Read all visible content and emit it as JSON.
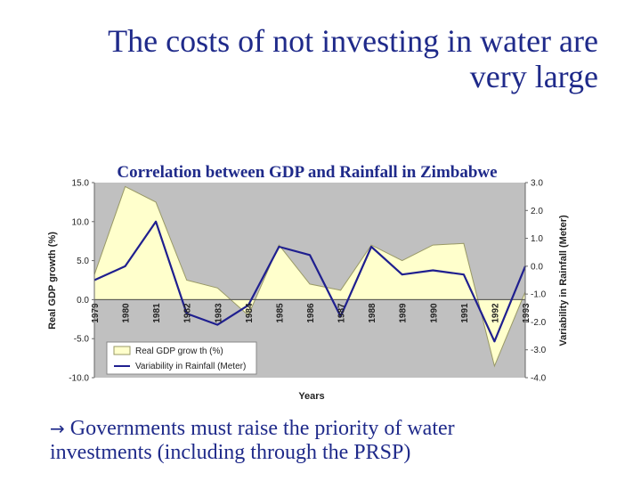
{
  "slide": {
    "title_line1": "The costs of not investing in water are",
    "title_line2": "very large",
    "bullet_symbol": "→",
    "bullet_line1": "Governments must raise the priority of water",
    "bullet_line2": "investments (including through the PRSP)"
  },
  "colors": {
    "title": "#1f2a8a",
    "plot_bg": "#c0c0c0",
    "gdp_fill": "#ffffcc",
    "gdp_line": "#999966",
    "rain_line": "#1f1f8f"
  },
  "chart_data": {
    "type": "area",
    "title": "Correlation between GDP and Rainfall in Zimbabwe",
    "xlabel": "Years",
    "ylabel_left": "Real GDP growth (%)",
    "ylabel_right": "Variability in Rainfall (Meter)",
    "categories": [
      "1979",
      "1980",
      "1981",
      "1982",
      "1983",
      "1984",
      "1985",
      "1986",
      "1987",
      "1988",
      "1989",
      "1990",
      "1991",
      "1992",
      "1993"
    ],
    "ylim_left": [
      -10,
      15
    ],
    "ylim_right": [
      -4,
      3
    ],
    "yticks_left": [
      "15.0",
      "10.0",
      "5.0",
      "0.0",
      "-5.0",
      "-10.0"
    ],
    "yticks_right": [
      "3.0",
      "2.0",
      "1.0",
      "0.0",
      "-1.0",
      "-2.0",
      "-3.0",
      "-4.0"
    ],
    "grid": false,
    "legend_position": "bottom-left",
    "series": [
      {
        "name": "Real GDP grow th (%)",
        "axis": "left",
        "type": "area",
        "values": [
          3.2,
          14.5,
          12.5,
          2.5,
          1.5,
          -2.0,
          7.0,
          2.0,
          1.2,
          7.0,
          5.0,
          7.0,
          7.2,
          -8.5,
          1.0
        ]
      },
      {
        "name": "Variability in Rainfall (Meter)",
        "axis": "right",
        "type": "line",
        "values": [
          -0.5,
          0.0,
          1.6,
          -1.7,
          -2.1,
          -1.4,
          0.7,
          0.4,
          -1.8,
          0.7,
          -0.3,
          -0.15,
          -0.3,
          -2.7,
          0.0
        ]
      }
    ]
  }
}
